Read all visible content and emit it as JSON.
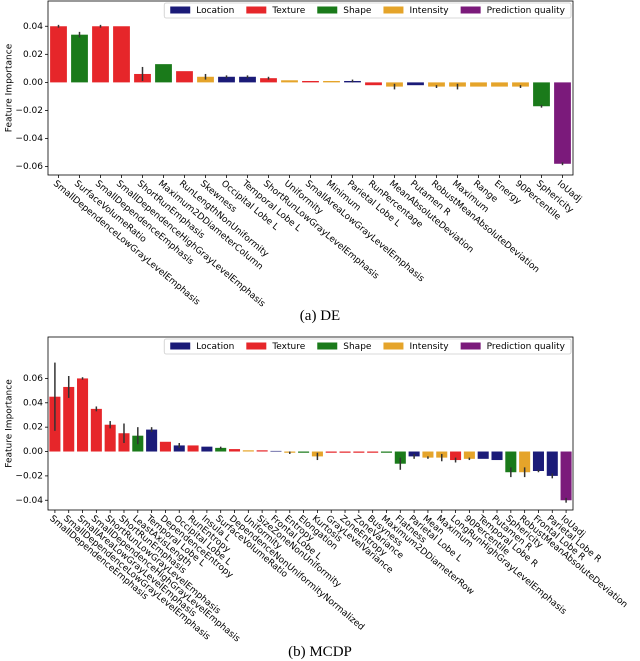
{
  "chart_data": [
    {
      "type": "bar",
      "caption": "(a) DE",
      "ylabel": "Feature Importance",
      "categories": [
        "SmallDependenceLowGrayLevelEmphasis",
        "SurfaceVolumeRatio",
        "SmallDependenceEmphasis",
        "SmallDependenceHighGrayLevelEmphasis",
        "ShortRunEmphasis",
        "Maximum2DDiameterColumn",
        "RunLengthNonUniformity",
        "Skewness",
        "Occipital Lobe L",
        "Temporal Lobe L",
        "ShortRunLowGrayLevelEmphasis",
        "Uniformity",
        "SmallAreaLowGrayLevelEmphasis",
        "Minimum",
        "Parietal Lobe L",
        "RunPercentage",
        "MeanAbsoluteDeviation",
        "Putamen R",
        "RobustMeanAbsoluteDeviation",
        "Maximum",
        "Range",
        "Energy",
        "90Percentile",
        "Sphericity",
        "IoUadj"
      ],
      "series": [
        {
          "name": "Location",
          "color": "#1b1b78",
          "values": [
            null,
            null,
            null,
            null,
            null,
            null,
            null,
            null,
            0.004,
            0.004,
            null,
            null,
            null,
            null,
            0.001,
            null,
            null,
            -0.002,
            null,
            null,
            null,
            null,
            null,
            null,
            null
          ],
          "errors": [
            null,
            null,
            null,
            null,
            null,
            null,
            null,
            null,
            0.001,
            0.001,
            null,
            null,
            null,
            null,
            0.001,
            null,
            null,
            0,
            null,
            null,
            null,
            null,
            null,
            null,
            null
          ]
        },
        {
          "name": "Texture",
          "color": "#e6262a",
          "values": [
            0.04,
            null,
            0.04,
            0.04,
            0.006,
            null,
            0.008,
            null,
            null,
            null,
            0.003,
            null,
            0.001,
            null,
            null,
            -0.002,
            null,
            null,
            null,
            null,
            null,
            null,
            null,
            null,
            null
          ],
          "errors": [
            0.001,
            null,
            0.001,
            0,
            0.005,
            null,
            0,
            null,
            null,
            null,
            0.001,
            null,
            0,
            null,
            null,
            0,
            null,
            null,
            null,
            null,
            null,
            null,
            null,
            null,
            null
          ]
        },
        {
          "name": "Shape",
          "color": "#1a7a1a",
          "values": [
            null,
            0.034,
            null,
            null,
            null,
            0.013,
            null,
            null,
            null,
            null,
            null,
            null,
            null,
            null,
            null,
            null,
            null,
            null,
            null,
            null,
            null,
            null,
            null,
            -0.017,
            null
          ],
          "errors": [
            null,
            0.002,
            null,
            null,
            null,
            0,
            null,
            null,
            null,
            null,
            null,
            null,
            null,
            null,
            null,
            null,
            null,
            null,
            null,
            null,
            null,
            null,
            null,
            0.001,
            null
          ]
        },
        {
          "name": "Intensity",
          "color": "#e5a42a",
          "values": [
            null,
            null,
            null,
            null,
            null,
            null,
            null,
            0.004,
            null,
            null,
            null,
            0.0015,
            null,
            0.001,
            null,
            null,
            -0.003,
            null,
            -0.003,
            -0.003,
            -0.003,
            -0.003,
            -0.003,
            null,
            null
          ],
          "errors": [
            null,
            null,
            null,
            null,
            null,
            null,
            null,
            0.002,
            null,
            null,
            null,
            0,
            null,
            0,
            null,
            null,
            0.002,
            null,
            0.001,
            0.002,
            0,
            0,
            0.001,
            null,
            null
          ]
        },
        {
          "name": "Prediction quality",
          "color": "#7b1a7b",
          "values": [
            null,
            null,
            null,
            null,
            null,
            null,
            null,
            null,
            null,
            null,
            null,
            null,
            null,
            null,
            null,
            null,
            null,
            null,
            null,
            null,
            null,
            null,
            null,
            null,
            -0.058
          ],
          "errors": [
            null,
            null,
            null,
            null,
            null,
            null,
            null,
            null,
            null,
            null,
            null,
            null,
            null,
            null,
            null,
            null,
            null,
            null,
            null,
            null,
            null,
            null,
            null,
            null,
            0.001
          ]
        }
      ],
      "ylim": [
        -0.066,
        0.058
      ],
      "yticks": [
        {
          "value": -0.06,
          "label": "−0.06"
        },
        {
          "value": -0.04,
          "label": "−0.04"
        },
        {
          "value": -0.02,
          "label": "−0.02"
        },
        {
          "value": 0,
          "label": "0.00"
        },
        0.02,
        0.04
      ]
    },
    {
      "type": "bar",
      "caption": "(b) MCDP",
      "ylabel": "Feature Importance",
      "categories": [
        "SmallDependenceEmphasis",
        "SmallDependenceLowGrayLevelEmphasis",
        "SmallAreaLowGrayLevelEmphasis",
        "SmallDependenceHighGrayLevelEmphasis",
        "ShortRunLowGrayLevelEmphasis",
        "ShortRunEmphasis",
        "LeastAxisLength",
        "Temporal Lobe L",
        "DependenceEntropy",
        "Occipital Lobe L",
        "RunEntropy",
        "Insula L",
        "SurfaceVolumeRatio",
        "DependenceNonUniformityNormalized",
        "Uniformity",
        "SizeZoneNonUniformity",
        "Frontal Lobe L",
        "Entropy",
        "Elongation",
        "Kurtosis",
        "GrayLevelVariance",
        "ZoneEntropy",
        "ZoneVariance",
        "Busyness",
        "Maximum2DDiameterRow",
        "Flatness",
        "Parietal Lobe L",
        "Mean",
        "Maximum",
        "LongRunHighGrayLevelEmphasis",
        "90Percentile",
        "Temporal Lobe R",
        "Putamen R",
        "Sphericity",
        "RobustMeanAbsoluteDeviation",
        "Frontal Lobe R",
        "Parietal Lobe R",
        "IoUadj"
      ],
      "series": [
        {
          "name": "Location",
          "color": "#1b1b78",
          "values": [
            null,
            null,
            null,
            null,
            null,
            null,
            null,
            0.018,
            null,
            0.005,
            null,
            0.004,
            null,
            null,
            null,
            null,
            0.0005,
            null,
            null,
            null,
            null,
            null,
            null,
            null,
            null,
            null,
            -0.004,
            null,
            null,
            null,
            null,
            -0.006,
            -0.007,
            null,
            null,
            -0.016,
            -0.02,
            null
          ],
          "errors": [
            null,
            null,
            null,
            null,
            null,
            null,
            null,
            0.002,
            null,
            0.002,
            null,
            0,
            null,
            null,
            null,
            null,
            0,
            null,
            null,
            null,
            null,
            null,
            null,
            null,
            null,
            null,
            0.002,
            null,
            null,
            null,
            null,
            0,
            0,
            null,
            null,
            0.001,
            0.002,
            null
          ]
        },
        {
          "name": "Texture",
          "color": "#e6262a",
          "values": [
            0.045,
            0.053,
            0.06,
            0.035,
            0.022,
            0.015,
            null,
            null,
            0.008,
            null,
            0.005,
            null,
            null,
            0.002,
            null,
            0.001,
            null,
            null,
            null,
            null,
            -0.001,
            -0.001,
            -0.001,
            -0.001,
            null,
            null,
            null,
            null,
            null,
            -0.007,
            null,
            null,
            null,
            null,
            null,
            null,
            null,
            null
          ],
          "errors": [
            0.028,
            0.009,
            0.001,
            0.002,
            0.003,
            0.008,
            null,
            null,
            0,
            null,
            0,
            null,
            null,
            0,
            null,
            0,
            null,
            null,
            null,
            null,
            0,
            0,
            0,
            0,
            null,
            null,
            null,
            null,
            null,
            0.002,
            null,
            null,
            null,
            null,
            null,
            null,
            null,
            null
          ]
        },
        {
          "name": "Shape",
          "color": "#1a7a1a",
          "values": [
            null,
            null,
            null,
            null,
            null,
            null,
            0.013,
            null,
            null,
            null,
            null,
            null,
            0.003,
            null,
            null,
            null,
            null,
            null,
            -0.001,
            null,
            null,
            null,
            null,
            null,
            -0.001,
            -0.01,
            null,
            null,
            null,
            null,
            null,
            null,
            null,
            -0.017,
            null,
            null,
            null,
            null
          ],
          "errors": [
            null,
            null,
            null,
            null,
            null,
            null,
            0.007,
            null,
            null,
            null,
            null,
            null,
            0.001,
            null,
            null,
            null,
            null,
            null,
            0,
            null,
            null,
            null,
            null,
            null,
            0,
            0.005,
            null,
            null,
            null,
            null,
            null,
            null,
            null,
            0.004,
            null,
            null,
            null,
            null
          ]
        },
        {
          "name": "Intensity",
          "color": "#e5a42a",
          "values": [
            null,
            null,
            null,
            null,
            null,
            null,
            null,
            null,
            null,
            null,
            null,
            null,
            null,
            null,
            0.001,
            null,
            null,
            -0.001,
            null,
            -0.004,
            null,
            null,
            null,
            null,
            null,
            null,
            null,
            -0.005,
            -0.005,
            null,
            -0.006,
            null,
            null,
            null,
            -0.017,
            null,
            null,
            null
          ],
          "errors": [
            null,
            null,
            null,
            null,
            null,
            null,
            null,
            null,
            null,
            null,
            null,
            null,
            null,
            null,
            0,
            null,
            null,
            0.001,
            null,
            0.003,
            null,
            null,
            null,
            null,
            null,
            null,
            null,
            0.001,
            0.003,
            null,
            0.001,
            null,
            null,
            null,
            0.004,
            null,
            null,
            null
          ]
        },
        {
          "name": "Prediction quality",
          "color": "#7b1a7b",
          "values": [
            null,
            null,
            null,
            null,
            null,
            null,
            null,
            null,
            null,
            null,
            null,
            null,
            null,
            null,
            null,
            null,
            null,
            null,
            null,
            null,
            null,
            null,
            null,
            null,
            null,
            null,
            null,
            null,
            null,
            null,
            null,
            null,
            null,
            null,
            null,
            null,
            null,
            -0.04
          ],
          "errors": [
            null,
            null,
            null,
            null,
            null,
            null,
            null,
            null,
            null,
            null,
            null,
            null,
            null,
            null,
            null,
            null,
            null,
            null,
            null,
            null,
            null,
            null,
            null,
            null,
            null,
            null,
            null,
            null,
            null,
            null,
            null,
            null,
            null,
            null,
            null,
            null,
            null,
            0.002
          ]
        }
      ],
      "ylim": [
        -0.048,
        0.094
      ],
      "yticks": [
        {
          "value": -0.04,
          "label": "−0.04"
        },
        {
          "value": -0.02,
          "label": "−0.02"
        },
        {
          "value": 0,
          "label": "0.00"
        },
        0.02,
        0.04,
        0.06
      ]
    }
  ]
}
